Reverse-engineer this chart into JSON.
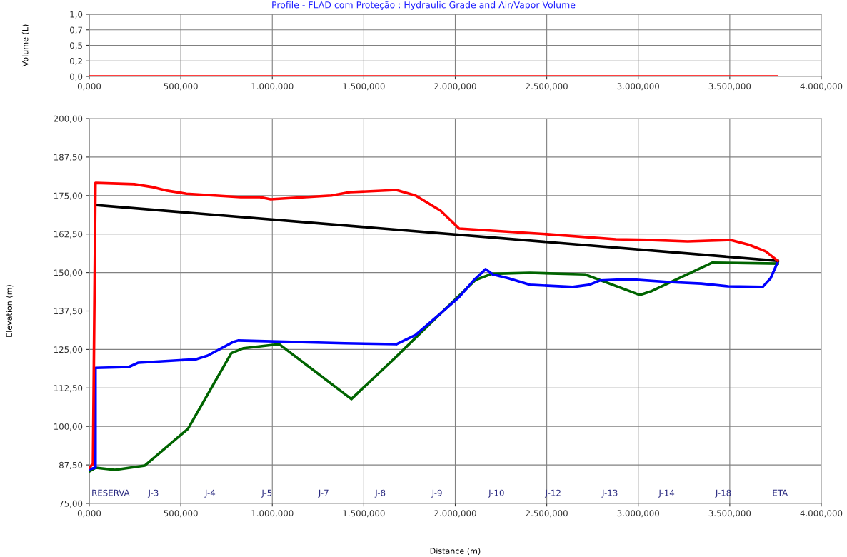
{
  "chart_data": [
    {
      "type": "line",
      "title": "Profile - FLAD com Proteção : Hydraulic Grade and Air/Vapor Volume",
      "ylabel": "Volume (L)",
      "xlim": [
        0,
        4000
      ],
      "xticks": [
        {
          "value": 0,
          "label": "0,000"
        },
        {
          "value": 500,
          "label": "500,000"
        },
        {
          "value": 1000,
          "label": "1.000,000"
        },
        {
          "value": 1500,
          "label": "1.500,000"
        },
        {
          "value": 2000,
          "label": "2.000,000"
        },
        {
          "value": 2500,
          "label": "2.500,000"
        },
        {
          "value": 3000,
          "label": "3.000,000"
        },
        {
          "value": 3500,
          "label": "3.500,000"
        },
        {
          "value": 4000,
          "label": "4.000,000"
        }
      ],
      "ylim": [
        0,
        1
      ],
      "yticks": [
        {
          "value": 0,
          "label": "0,0"
        },
        {
          "value": 0.25,
          "label": "0,2"
        },
        {
          "value": 0.5,
          "label": "0,5"
        },
        {
          "value": 0.75,
          "label": "0,7"
        },
        {
          "value": 1,
          "label": "1,0"
        }
      ],
      "grid": true,
      "marker": "none",
      "line_style": "solid",
      "series": [
        {
          "color": "#ff0000",
          "x": [
            0,
            3758
          ],
          "values": [
            0,
            0
          ]
        }
      ]
    },
    {
      "type": "line",
      "xlabel": "Distance (m)",
      "ylabel": "Elevation (m)",
      "xlim": [
        0,
        4000
      ],
      "xticks": [
        {
          "value": 0,
          "label": "0,000"
        },
        {
          "value": 500,
          "label": "500,000"
        },
        {
          "value": 1000,
          "label": "1.000,000"
        },
        {
          "value": 1500,
          "label": "1.500,000"
        },
        {
          "value": 2000,
          "label": "2.000,000"
        },
        {
          "value": 2500,
          "label": "2.500,000"
        },
        {
          "value": 3000,
          "label": "3.000,000"
        },
        {
          "value": 3500,
          "label": "3.500,000"
        },
        {
          "value": 4000,
          "label": "4.000,000"
        }
      ],
      "ylim": [
        75,
        200
      ],
      "yticks": [
        {
          "value": 75,
          "label": "75,00"
        },
        {
          "value": 87.5,
          "label": "87,50"
        },
        {
          "value": 100,
          "label": "100,00"
        },
        {
          "value": 112.5,
          "label": "112,50"
        },
        {
          "value": 125,
          "label": "125,00"
        },
        {
          "value": 137.5,
          "label": "137,50"
        },
        {
          "value": 150,
          "label": "150,00"
        },
        {
          "value": 162.5,
          "label": "162,50"
        },
        {
          "value": 175,
          "label": "175,00"
        },
        {
          "value": 187.5,
          "label": "187,50"
        },
        {
          "value": 200,
          "label": "200,00"
        }
      ],
      "grid": true,
      "marker": "none",
      "line_style": "solid",
      "series": [
        {
          "color": "#006400",
          "x": [
            0,
            35,
            140,
            304,
            539,
            776,
            843,
            1038,
            1432,
            1659,
            1920,
            2111,
            2201,
            2408,
            2708,
            3009,
            3067,
            3403,
            3762
          ],
          "values": [
            85.4,
            86.6,
            85.9,
            87.3,
            99.2,
            123.8,
            125.4,
            126.7,
            108.9,
            121.6,
            136.7,
            147.6,
            149.6,
            149.9,
            149.4,
            142.7,
            143.8,
            153.2,
            152.9
          ]
        },
        {
          "color": "#0000ff",
          "x": [
            0,
            34,
            34,
            215,
            268,
            582,
            647,
            785,
            813,
            1396,
            1678,
            1783,
            1920,
            2021,
            2100,
            2166,
            2205,
            2291,
            2408,
            2642,
            2732,
            2790,
            2950,
            3169,
            3344,
            3489,
            3680,
            3723,
            3762
          ],
          "values": [
            86.1,
            86.6,
            119.0,
            119.3,
            120.7,
            121.8,
            123.0,
            127.4,
            127.9,
            127.0,
            126.7,
            129.7,
            136.7,
            142.0,
            147.4,
            151.1,
            149.4,
            148.1,
            146.0,
            145.3,
            146.0,
            147.4,
            147.8,
            146.9,
            146.4,
            145.5,
            145.3,
            148.1,
            153.4
          ]
        },
        {
          "color": "#000000",
          "x": [
            34,
            3762
          ],
          "values": [
            171.9,
            153.8
          ]
        },
        {
          "color": "#ff0000",
          "x": [
            0,
            20,
            34,
            246,
            351,
            425,
            531,
            827,
            933,
            991,
            1323,
            1424,
            1678,
            1783,
            1920,
            2021,
            2513,
            2876,
            3052,
            3270,
            3504,
            3606,
            3696,
            3762
          ],
          "values": [
            86.6,
            87.8,
            179.1,
            178.7,
            177.7,
            176.6,
            175.6,
            174.5,
            174.5,
            173.8,
            175.0,
            176.1,
            176.8,
            175.0,
            170.1,
            164.3,
            162.4,
            160.8,
            160.6,
            160.1,
            160.6,
            159.0,
            156.9,
            153.8
          ]
        }
      ],
      "annotations": [
        "RESERVA",
        "J-3",
        "J-4",
        "J-5",
        "J-7",
        "J-8",
        "J-9",
        "J-10",
        "J-12",
        "J-13",
        "J-14",
        "J-18",
        "ETA"
      ]
    }
  ]
}
